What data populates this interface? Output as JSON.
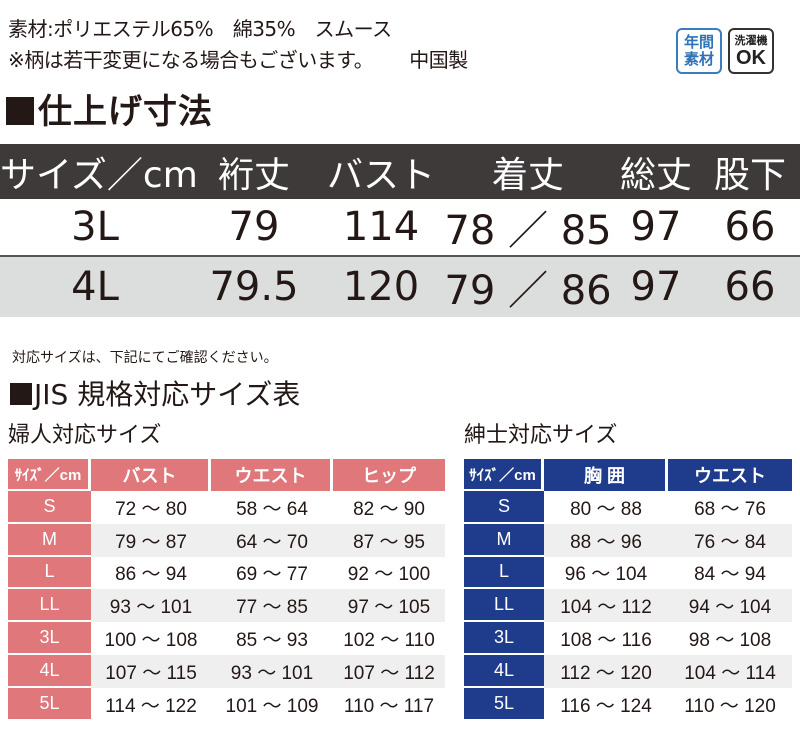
{
  "header": {
    "material_line": "素材:ポリエステル65%　綿35%　スムース",
    "note_line": "※柄は若干変更になる場合もございます。",
    "origin": "中国製"
  },
  "badges": {
    "year_line1": "年間",
    "year_line2": "素材",
    "wash_line1": "洗濯機",
    "wash_line2": "OK"
  },
  "finished_size": {
    "title": "仕上げ寸法",
    "headers": [
      "サイズ／cm",
      "裄丈",
      "バスト",
      "着丈",
      "総丈",
      "股下"
    ],
    "rows": [
      [
        "3L",
        "79",
        "114",
        "78 ／ 85",
        "97",
        "66"
      ],
      [
        "4L",
        "79.5",
        "120",
        "79 ／ 86",
        "97",
        "66"
      ]
    ]
  },
  "note": "対応サイズは、下記にてご確認ください。",
  "jis_title": "JIS 規格対応サイズ表",
  "womens": {
    "title": "婦人対応サイズ",
    "headers": [
      "ｻｲｽﾞ／cm",
      "バスト",
      "ウエスト",
      "ヒップ"
    ],
    "rows": [
      [
        "S",
        "72 〜 80",
        "58 〜 64",
        "82 〜 90"
      ],
      [
        "M",
        "79 〜 87",
        "64 〜 70",
        "87 〜 95"
      ],
      [
        "L",
        "86 〜 94",
        "69 〜 77",
        "92 〜 100"
      ],
      [
        "LL",
        "93 〜 101",
        "77 〜 85",
        "97 〜 105"
      ],
      [
        "3L",
        "100 〜 108",
        "85 〜 93",
        "102 〜 110"
      ],
      [
        "4L",
        "107 〜 115",
        "93 〜 101",
        "107 〜 112"
      ],
      [
        "5L",
        "114 〜 122",
        "101 〜 109",
        "110 〜 117"
      ]
    ]
  },
  "mens": {
    "title": "紳士対応サイズ",
    "headers": [
      "ｻｲｽﾞ／cm",
      "胸 囲",
      "ウエスト"
    ],
    "rows": [
      [
        "S",
        "80 〜 88",
        "68 〜 76"
      ],
      [
        "M",
        "88 〜 96",
        "76 〜 84"
      ],
      [
        "L",
        "96 〜 104",
        "84 〜 94"
      ],
      [
        "LL",
        "104 〜 112",
        "94 〜 104"
      ],
      [
        "3L",
        "108 〜 116",
        "98 〜 108"
      ],
      [
        "4L",
        "112 〜 120",
        "104 〜 114"
      ],
      [
        "5L",
        "116 〜 124",
        "110 〜 120"
      ]
    ]
  },
  "colors": {
    "womens_accent": "#e0777a",
    "mens_accent": "#1f3c8c",
    "table_header": "#3e3a39",
    "row_shade": "#dcdddd"
  }
}
